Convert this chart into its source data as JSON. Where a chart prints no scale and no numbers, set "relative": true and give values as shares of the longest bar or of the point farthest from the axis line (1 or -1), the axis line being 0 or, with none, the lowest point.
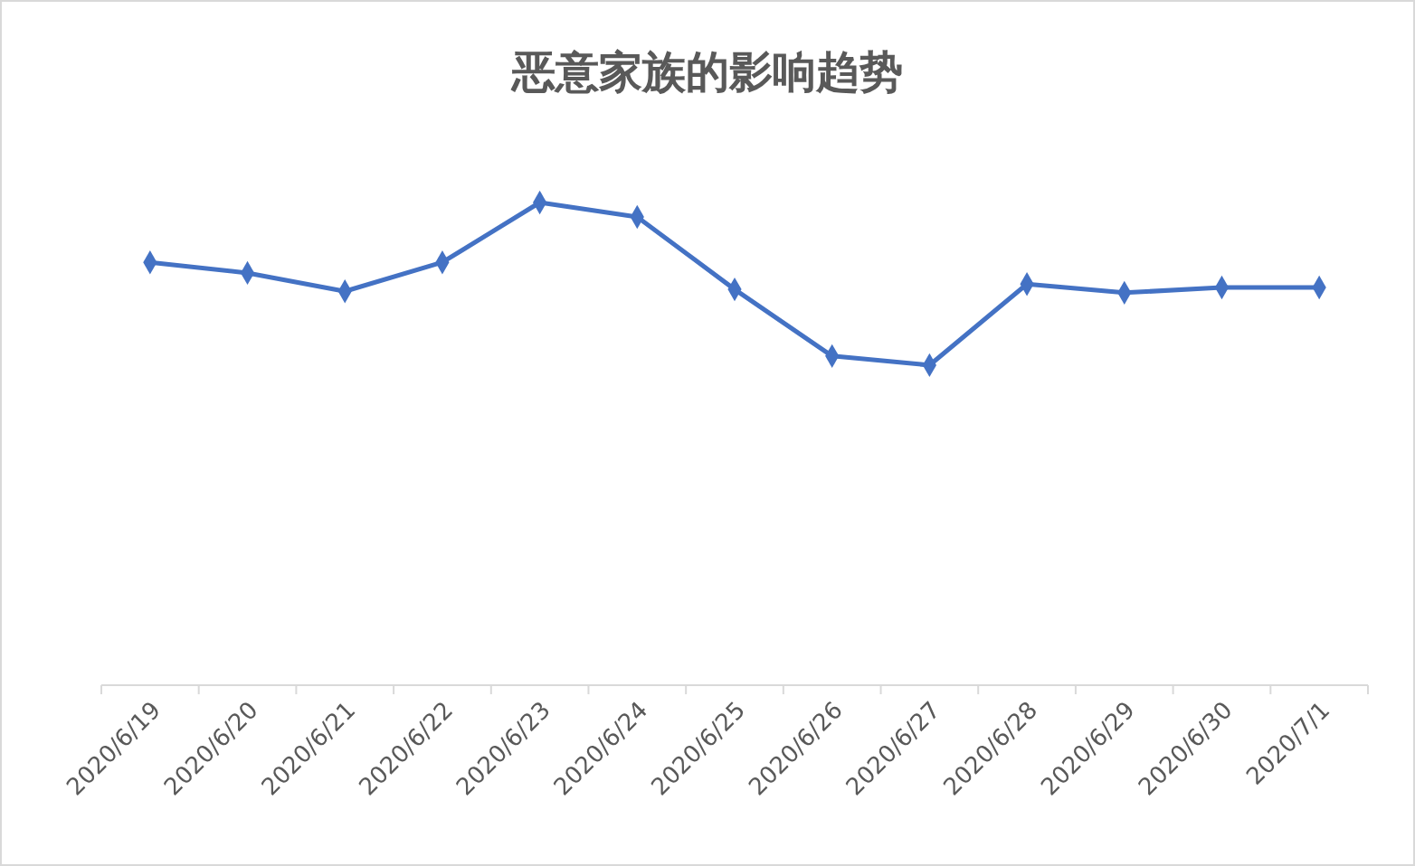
{
  "chart_data": {
    "type": "line",
    "title": "恶意家族的影响趋势",
    "relative": true,
    "categories": [
      "2020/6/19",
      "2020/6/20",
      "2020/6/21",
      "2020/6/22",
      "2020/6/23",
      "2020/6/24",
      "2020/6/25",
      "2020/6/26",
      "2020/6/27",
      "2020/6/28",
      "2020/6/29",
      "2020/6/30",
      "2020/7/1"
    ],
    "series": [
      {
        "color": "#4472c4",
        "values": [
          0.876,
          0.854,
          0.816,
          0.876,
          1,
          0.97,
          0.82,
          0.682,
          0.663,
          0.831,
          0.813,
          0.824,
          0.824
        ]
      }
    ],
    "marker": "diamond",
    "line_style": "solid"
  }
}
